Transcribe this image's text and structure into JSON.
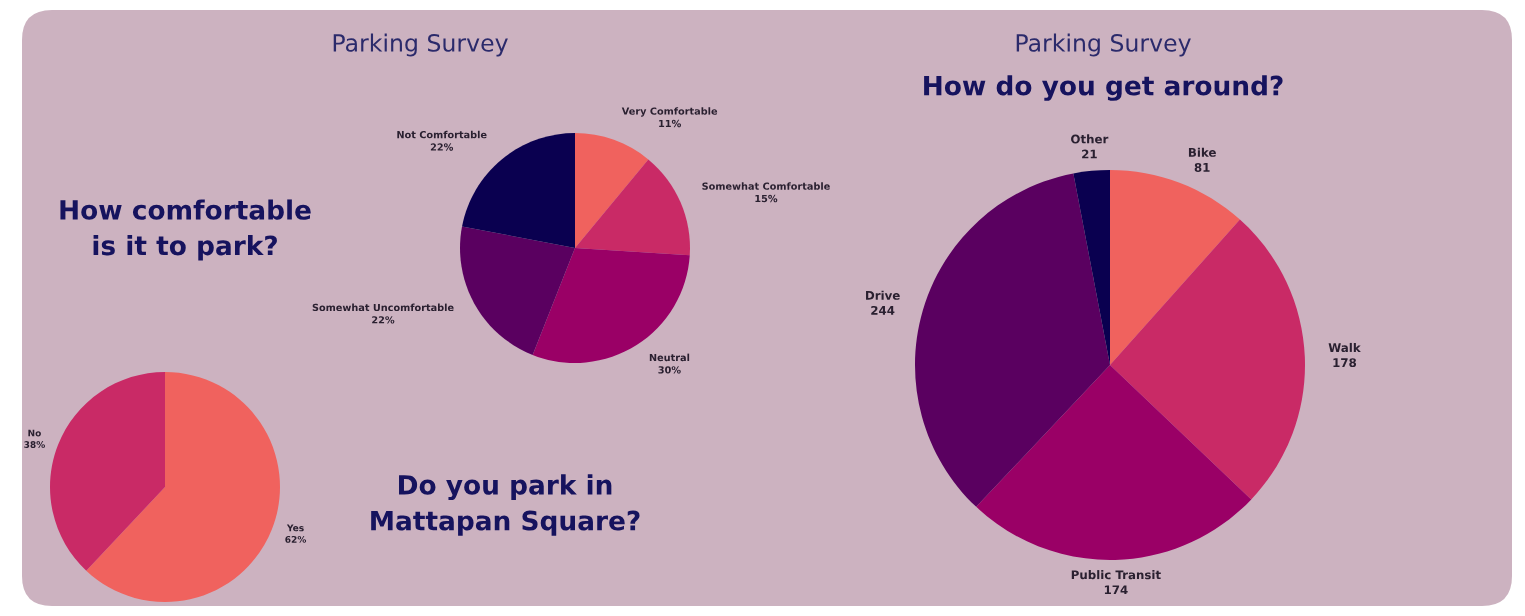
{
  "chart_data": [
    {
      "type": "pie",
      "title": "Parking Survey",
      "subtitle": "How comfortable\nis it to park?",
      "categories": [
        "Very Comfortable",
        "Somewhat Comfortable",
        "Neutral",
        "Somewhat Uncomfortable",
        "Not Comfortable"
      ],
      "values": [
        11,
        15,
        30,
        22,
        22
      ],
      "value_labels": [
        "11%",
        "15%",
        "30%",
        "22%",
        "22%"
      ],
      "colors": [
        "#f0625e",
        "#c92a66",
        "#9a0066",
        "#5a0060",
        "#0a0050"
      ]
    },
    {
      "type": "pie",
      "title": "Do you park in\nMattapan Square?",
      "categories": [
        "Yes",
        "No"
      ],
      "values": [
        62,
        38
      ],
      "value_labels": [
        "62%",
        "38%"
      ],
      "colors": [
        "#f0625e",
        "#c92a66"
      ]
    },
    {
      "type": "pie",
      "title": "Parking Survey",
      "subtitle": "How do you get around?",
      "categories": [
        "Bike",
        "Walk",
        "Public Transit",
        "Drive",
        "Other"
      ],
      "values": [
        81,
        178,
        174,
        244,
        21
      ],
      "data_labels": true,
      "colors": [
        "#f0625e",
        "#c92a66",
        "#9a0066",
        "#5a0060",
        "#0a0050"
      ]
    }
  ]
}
